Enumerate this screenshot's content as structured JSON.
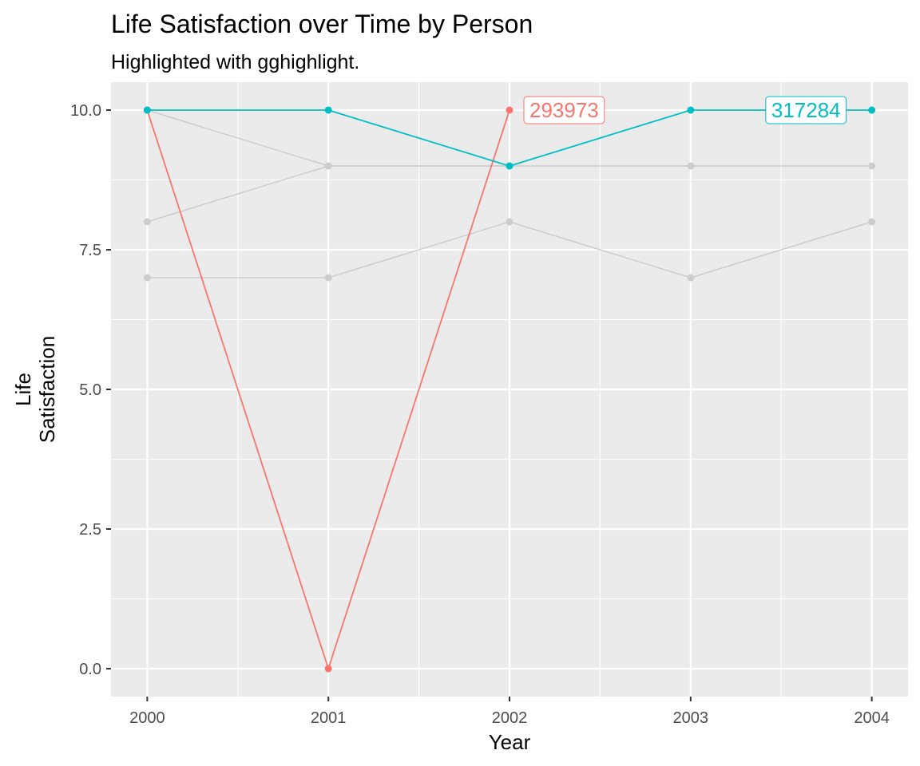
{
  "chart_data": {
    "type": "line",
    "title": "Life Satisfaction over Time by Person",
    "subtitle": "Highlighted with gghighlight.",
    "xlabel": "Year",
    "ylabel": [
      "Life",
      "Satisfaction"
    ],
    "x": [
      2000,
      2001,
      2002,
      2003,
      2004
    ],
    "xticks": [
      "2000",
      "2001",
      "2002",
      "2003",
      "2004"
    ],
    "yticks": [
      "0.0",
      "2.5",
      "5.0",
      "7.5",
      "10.0"
    ],
    "ytick_values": [
      0,
      2.5,
      5,
      7.5,
      10
    ],
    "xlim": [
      1999.8,
      2004.2
    ],
    "ylim": [
      -0.5,
      10.5
    ],
    "grid": true,
    "panel_background": "#ebebeb",
    "series": [
      {
        "values": [
          8,
          9,
          9,
          9,
          9
        ],
        "color": "#cccccc",
        "highlighted": false
      },
      {
        "values": [
          10,
          9,
          9,
          null,
          null
        ],
        "color": "#cccccc",
        "highlighted": false
      },
      {
        "values": [
          7,
          7,
          8,
          7,
          8
        ],
        "color": "#cccccc",
        "highlighted": false
      },
      {
        "name": "293973",
        "values": [
          10,
          0,
          10,
          null,
          null
        ],
        "color": "#f8766d",
        "highlighted": true,
        "label_anchor": "right"
      },
      {
        "name": "317284",
        "values": [
          10,
          10,
          9,
          10,
          10
        ],
        "color": "#00bfc4",
        "highlighted": true,
        "label_anchor": "left"
      }
    ]
  }
}
